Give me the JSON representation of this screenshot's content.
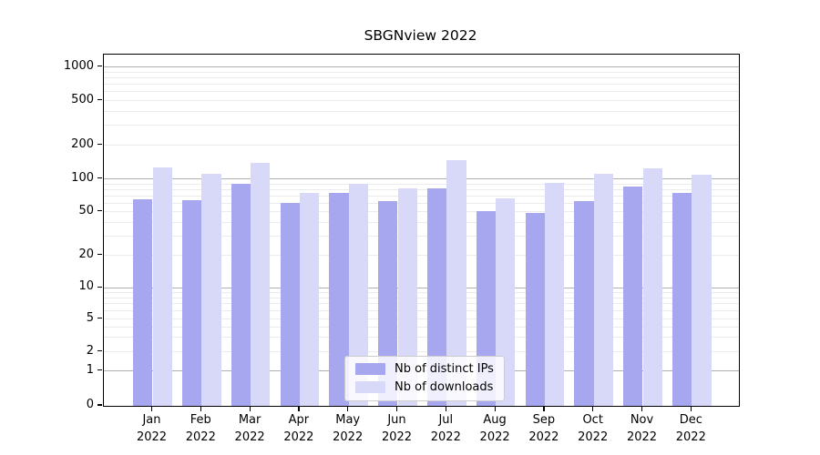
{
  "figure": {
    "title": "SBGNview 2022"
  },
  "colors": {
    "distinct_ips": "#a7a7f0",
    "downloads": "#d8d8f8",
    "major_grid": "#b0b0b0",
    "minor_grid": "#ebebeb",
    "axis": "#000000",
    "legend_border": "#cccccc"
  },
  "chart_data": {
    "type": "bar",
    "title": "SBGNview 2022",
    "categories": [
      "Jan 2022",
      "Feb 2022",
      "Mar 2022",
      "Apr 2022",
      "May 2022",
      "Jun 2022",
      "Jul 2022",
      "Aug 2022",
      "Sep 2022",
      "Oct 2022",
      "Nov 2022",
      "Dec 2022"
    ],
    "x": {
      "months": [
        "Jan",
        "Feb",
        "Mar",
        "Apr",
        "May",
        "Jun",
        "Jul",
        "Aug",
        "Sep",
        "Oct",
        "Nov",
        "Dec"
      ],
      "year": "2022"
    },
    "series": [
      {
        "name": "Nb of distinct IPs",
        "key": "distinct-ips",
        "color": "#a7a7f0",
        "values": [
          65,
          64,
          91,
          60,
          74,
          63,
          82,
          51,
          49,
          63,
          86,
          75
        ]
      },
      {
        "name": "Nb of downloads",
        "key": "downloads",
        "color": "#d8d8f8",
        "values": [
          127,
          112,
          140,
          74,
          91,
          82,
          147,
          66,
          92,
          112,
          125,
          110
        ]
      }
    ],
    "y_axis": {
      "scale": "symlog",
      "tick_values": [
        1000,
        500,
        200,
        100,
        50,
        20,
        10,
        5,
        2,
        1,
        0
      ],
      "tick_labels": [
        "1000",
        "500",
        "200",
        "100",
        "50",
        "20",
        "10",
        "5",
        "2",
        "1",
        "0"
      ],
      "ylim": [
        0,
        1300
      ]
    },
    "grid": {
      "major_values": [
        1,
        10,
        100,
        1000
      ],
      "minor_values": [
        2,
        3,
        4,
        5,
        6,
        7,
        8,
        9,
        20,
        30,
        40,
        50,
        60,
        70,
        80,
        90,
        200,
        300,
        400,
        500,
        600,
        700,
        800,
        900
      ]
    },
    "legend": {
      "entries": [
        "Nb of distinct IPs",
        "Nb of downloads"
      ],
      "location": "lower-center"
    }
  }
}
